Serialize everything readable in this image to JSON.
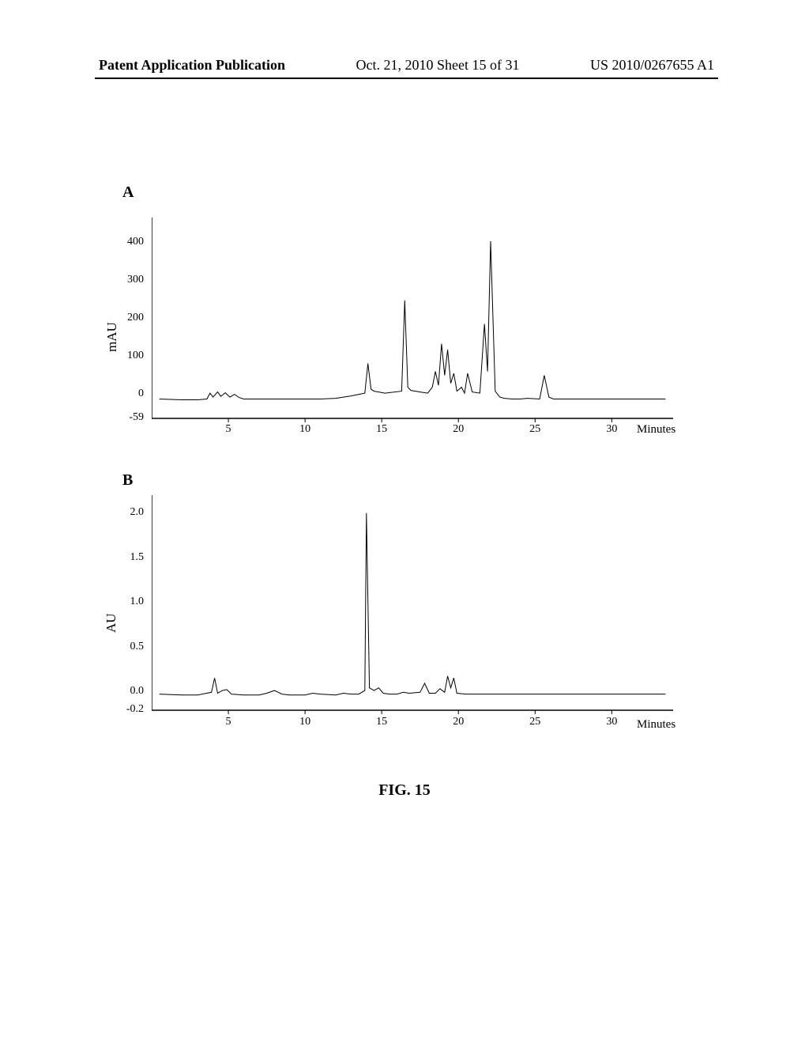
{
  "header": {
    "left": "Patent Application Publication",
    "center": "Oct. 21, 2010  Sheet 15 of 31",
    "right": "US 2010/0267655 A1"
  },
  "figure_caption": "FIG. 15",
  "panel_a": {
    "label": "A",
    "y_axis_label": "mAU",
    "x_axis_label": "Minutes",
    "y_ticks": [
      "-59",
      "0",
      "100",
      "200",
      "300",
      "400"
    ],
    "x_ticks": [
      "5",
      "10",
      "15",
      "20",
      "25",
      "30"
    ],
    "chart": {
      "type": "line",
      "line_color": "#000000",
      "line_width": 1,
      "background_color": "#ffffff",
      "xlim": [
        0,
        34
      ],
      "ylim": [
        -59,
        450
      ],
      "points": [
        [
          0.5,
          -10
        ],
        [
          2,
          -12
        ],
        [
          3,
          -12
        ],
        [
          3.6,
          -10
        ],
        [
          3.8,
          5
        ],
        [
          4.0,
          -5
        ],
        [
          4.3,
          8
        ],
        [
          4.5,
          -3
        ],
        [
          4.8,
          6
        ],
        [
          5.1,
          -5
        ],
        [
          5.4,
          2
        ],
        [
          5.7,
          -6
        ],
        [
          6,
          -10
        ],
        [
          7,
          -10
        ],
        [
          8,
          -10
        ],
        [
          9,
          -10
        ],
        [
          10,
          -10
        ],
        [
          11,
          -10
        ],
        [
          12,
          -8
        ],
        [
          12.5,
          -5
        ],
        [
          13,
          -2
        ],
        [
          13.5,
          2
        ],
        [
          13.9,
          5
        ],
        [
          14.1,
          80
        ],
        [
          14.3,
          15
        ],
        [
          14.5,
          10
        ],
        [
          14.8,
          8
        ],
        [
          15.2,
          5
        ],
        [
          16.3,
          10
        ],
        [
          16.5,
          240
        ],
        [
          16.7,
          20
        ],
        [
          16.9,
          12
        ],
        [
          17.2,
          10
        ],
        [
          17.5,
          8
        ],
        [
          18.0,
          5
        ],
        [
          18.3,
          20
        ],
        [
          18.5,
          60
        ],
        [
          18.7,
          25
        ],
        [
          18.9,
          130
        ],
        [
          19.1,
          50
        ],
        [
          19.3,
          115
        ],
        [
          19.5,
          30
        ],
        [
          19.7,
          55
        ],
        [
          19.9,
          10
        ],
        [
          20.2,
          20
        ],
        [
          20.4,
          5
        ],
        [
          20.6,
          55
        ],
        [
          20.9,
          8
        ],
        [
          21.4,
          5
        ],
        [
          21.7,
          180
        ],
        [
          21.9,
          60
        ],
        [
          22.1,
          390
        ],
        [
          22.4,
          10
        ],
        [
          22.7,
          -5
        ],
        [
          23,
          -8
        ],
        [
          23.5,
          -10
        ],
        [
          24,
          -10
        ],
        [
          24.5,
          -8
        ],
        [
          25.3,
          -10
        ],
        [
          25.6,
          50
        ],
        [
          25.9,
          -5
        ],
        [
          26.2,
          -10
        ],
        [
          27,
          -10
        ],
        [
          28,
          -10
        ],
        [
          29,
          -10
        ],
        [
          30,
          -10
        ],
        [
          31,
          -10
        ],
        [
          32,
          -10
        ],
        [
          33,
          -10
        ],
        [
          33.5,
          -10
        ]
      ]
    }
  },
  "panel_b": {
    "label": "B",
    "y_axis_label": "AU",
    "x_axis_label": "Minutes",
    "y_ticks": [
      "-0.2",
      "0.0",
      "0.5",
      "1.0",
      "1.5",
      "2.0"
    ],
    "x_ticks": [
      "5",
      "10",
      "15",
      "20",
      "25",
      "30"
    ],
    "chart": {
      "type": "line",
      "line_color": "#000000",
      "line_width": 1,
      "background_color": "#ffffff",
      "xlim": [
        0,
        34
      ],
      "ylim": [
        -0.2,
        2.2
      ],
      "points": [
        [
          0.5,
          -0.02
        ],
        [
          2,
          -0.03
        ],
        [
          3,
          -0.03
        ],
        [
          3.9,
          0.0
        ],
        [
          4.1,
          0.16
        ],
        [
          4.3,
          -0.01
        ],
        [
          4.6,
          0.02
        ],
        [
          4.9,
          0.03
        ],
        [
          5.2,
          -0.02
        ],
        [
          6,
          -0.03
        ],
        [
          7,
          -0.03
        ],
        [
          7.5,
          -0.01
        ],
        [
          8,
          0.02
        ],
        [
          8.5,
          -0.02
        ],
        [
          9,
          -0.03
        ],
        [
          10,
          -0.03
        ],
        [
          10.5,
          -0.01
        ],
        [
          11,
          -0.02
        ],
        [
          12,
          -0.03
        ],
        [
          12.5,
          -0.01
        ],
        [
          13.0,
          -0.02
        ],
        [
          13.5,
          -0.02
        ],
        [
          13.9,
          0.02
        ],
        [
          14.0,
          2.0
        ],
        [
          14.2,
          0.05
        ],
        [
          14.5,
          0.02
        ],
        [
          14.8,
          0.05
        ],
        [
          15.1,
          -0.01
        ],
        [
          15.5,
          -0.02
        ],
        [
          16,
          -0.02
        ],
        [
          16.4,
          0.0
        ],
        [
          16.8,
          -0.01
        ],
        [
          17.5,
          0.0
        ],
        [
          17.8,
          0.1
        ],
        [
          18.1,
          -0.01
        ],
        [
          18.5,
          -0.01
        ],
        [
          18.8,
          0.04
        ],
        [
          19.1,
          0.0
        ],
        [
          19.3,
          0.18
        ],
        [
          19.5,
          0.05
        ],
        [
          19.7,
          0.16
        ],
        [
          19.9,
          -0.01
        ],
        [
          20.5,
          -0.02
        ],
        [
          21,
          -0.02
        ],
        [
          22,
          -0.02
        ],
        [
          23,
          -0.02
        ],
        [
          24,
          -0.02
        ],
        [
          25,
          -0.02
        ],
        [
          26,
          -0.02
        ],
        [
          27,
          -0.02
        ],
        [
          28,
          -0.02
        ],
        [
          29,
          -0.02
        ],
        [
          30,
          -0.02
        ],
        [
          31,
          -0.02
        ],
        [
          32,
          -0.02
        ],
        [
          33,
          -0.02
        ],
        [
          33.5,
          -0.02
        ]
      ]
    }
  }
}
